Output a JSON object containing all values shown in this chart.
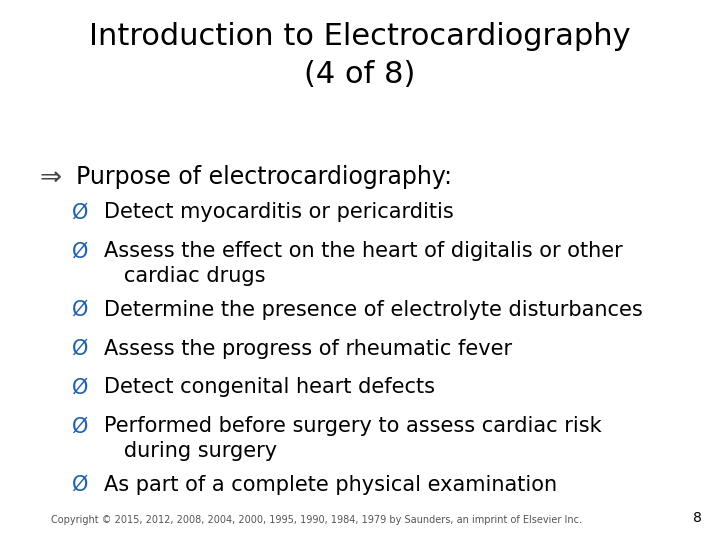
{
  "title_line1": "Introduction to Electrocardiography",
  "title_line2": "(4 of 8)",
  "title_fontsize": 22,
  "title_color": "#000000",
  "bg_color": "#ffffff",
  "bullet_main_symbol": "Ø",
  "bullet_main_text": "Purpose of electrocardiography:",
  "bullet_main_fontsize": 17,
  "bullet_main_color": "#000000",
  "sub_bullet_symbol": "Ø",
  "sub_bullet_color": "#2060b0",
  "sub_bullet_fontsize": 15,
  "sub_items": [
    {
      "text": "Detect myocarditis or pericarditis"
    },
    {
      "text": "Assess the effect on the heart of digitalis or other\n   cardiac drugs"
    },
    {
      "text": "Determine the presence of electrolyte disturbances"
    },
    {
      "text": "Assess the progress of rheumatic fever"
    },
    {
      "text": "Detect congenital heart defects"
    },
    {
      "text": "Performed before surgery to assess cardiac risk\n   during surgery"
    },
    {
      "text": "As part of a complete physical examination"
    }
  ],
  "copyright_text": "Copyright © 2015, 2012, 2008, 2004, 2000, 1995, 1990, 1984, 1979 by Saunders, an imprint of Elsevier Inc.",
  "copyright_fontsize": 7,
  "copyright_color": "#555555",
  "page_number": "8",
  "page_number_fontsize": 10
}
